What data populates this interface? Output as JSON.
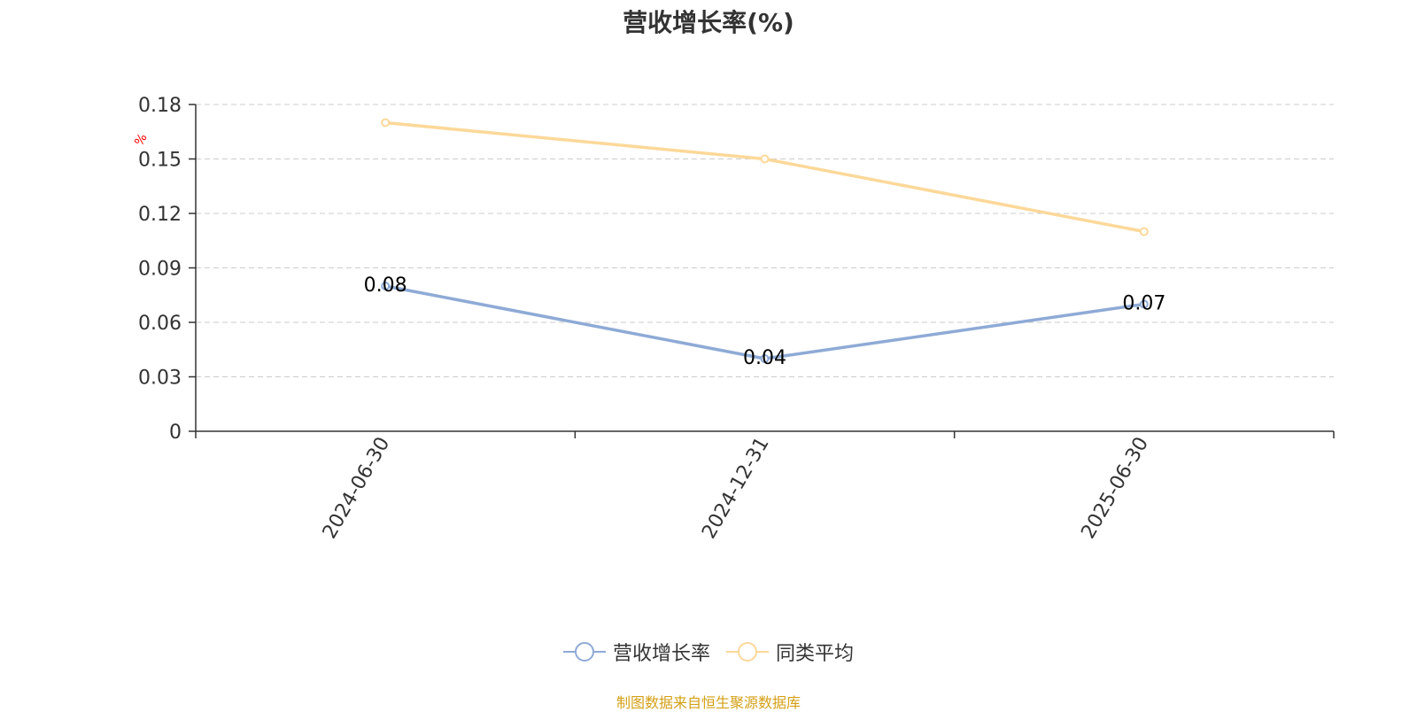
{
  "chart_data": {
    "type": "line",
    "title": "营收增长率(%)",
    "ylabel": "%",
    "xlabel": "",
    "categories": [
      "2024-06-30",
      "2024-12-31",
      "2025-06-30"
    ],
    "ylim": [
      0,
      0.18
    ],
    "yticks": [
      "0",
      "0.03",
      "0.06",
      "0.09",
      "0.12",
      "0.15",
      "0.18"
    ],
    "grid": true,
    "legend_position": "bottom",
    "series": [
      {
        "name": "营收增长率",
        "values": [
          0.08,
          0.04,
          0.07
        ],
        "labels": [
          "0.08",
          "0.04",
          "0.07"
        ],
        "color": "#8eaad6",
        "show_labels": true
      },
      {
        "name": "同类平均",
        "values": [
          0.17,
          0.15,
          0.11
        ],
        "color": "#fcd899",
        "show_labels": false
      }
    ]
  },
  "source_note": "制图数据来自恒生聚源数据库",
  "colors": {
    "axis": "#333333",
    "grid": "#cccccc",
    "ylabel": "#ff0000",
    "source": "#d4a017"
  }
}
